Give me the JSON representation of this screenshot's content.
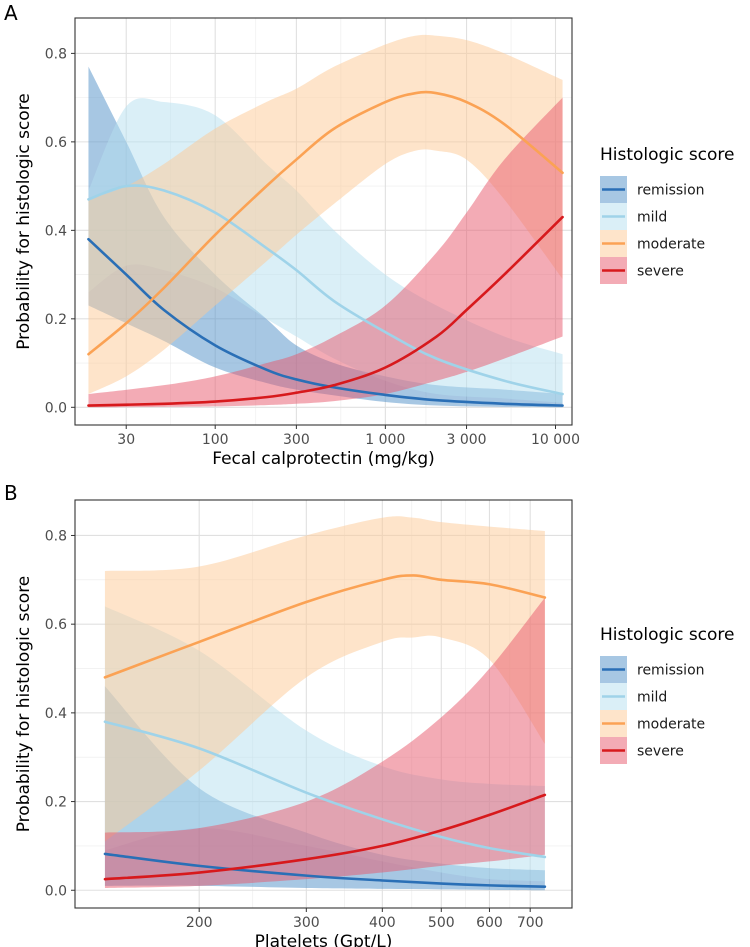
{
  "chart_data": [
    {
      "panel": "A",
      "type": "line",
      "xlabel": "Fecal calprotectin (mg/kg)",
      "ylabel": "Probability for histologic score",
      "xscale": "log10",
      "xlim": [
        15,
        12500
      ],
      "ylim": [
        -0.04,
        0.88
      ],
      "xticks": [
        30,
        100,
        300,
        1000,
        3000,
        10000
      ],
      "xtick_labels": [
        "30",
        "100",
        "300",
        "1 000",
        "3 000",
        "10 000"
      ],
      "yticks": [
        0,
        0.2,
        0.4,
        0.6,
        0.8
      ],
      "ytick_labels": [
        "0.0",
        "0.2",
        "0.4",
        "0.6",
        "0.8"
      ],
      "grid": true,
      "legend": {
        "title": "Histologic score",
        "position": "right"
      },
      "series": [
        {
          "name": "remission",
          "x": [
            18,
            30,
            50,
            100,
            200,
            300,
            500,
            1000,
            2000,
            5000,
            11000
          ],
          "y": [
            0.38,
            0.3,
            0.22,
            0.14,
            0.085,
            0.063,
            0.045,
            0.028,
            0.016,
            0.008,
            0.004
          ],
          "lower": [
            0.23,
            0.19,
            0.15,
            0.09,
            0.055,
            0.04,
            0.027,
            0.012,
            0.004,
            0.001,
            0.0
          ],
          "upper": [
            0.77,
            0.6,
            0.43,
            0.3,
            0.2,
            0.14,
            0.1,
            0.07,
            0.05,
            0.04,
            0.03
          ]
        },
        {
          "name": "mild",
          "x": [
            18,
            30,
            50,
            100,
            200,
            300,
            500,
            1000,
            2000,
            5000,
            11000
          ],
          "y": [
            0.47,
            0.5,
            0.49,
            0.44,
            0.36,
            0.31,
            0.24,
            0.17,
            0.11,
            0.06,
            0.03
          ],
          "lower": [
            0.26,
            0.32,
            0.31,
            0.27,
            0.2,
            0.16,
            0.11,
            0.06,
            0.03,
            0.02,
            0.01
          ],
          "upper": [
            0.49,
            0.68,
            0.69,
            0.66,
            0.55,
            0.49,
            0.4,
            0.3,
            0.23,
            0.16,
            0.12
          ]
        },
        {
          "name": "moderate",
          "x": [
            18,
            30,
            50,
            100,
            200,
            300,
            500,
            1000,
            1500,
            2000,
            3000,
            5000,
            11000
          ],
          "y": [
            0.12,
            0.19,
            0.27,
            0.39,
            0.5,
            0.56,
            0.63,
            0.69,
            0.71,
            0.71,
            0.69,
            0.64,
            0.53
          ],
          "lower": [
            0.03,
            0.07,
            0.13,
            0.23,
            0.33,
            0.39,
            0.46,
            0.55,
            0.58,
            0.58,
            0.56,
            0.47,
            0.29
          ],
          "upper": [
            0.47,
            0.5,
            0.55,
            0.63,
            0.69,
            0.72,
            0.77,
            0.82,
            0.84,
            0.84,
            0.83,
            0.8,
            0.74
          ]
        },
        {
          "name": "severe",
          "x": [
            18,
            50,
            100,
            200,
            300,
            500,
            1000,
            2000,
            3000,
            5000,
            11000
          ],
          "y": [
            0.004,
            0.008,
            0.013,
            0.023,
            0.033,
            0.05,
            0.09,
            0.16,
            0.22,
            0.3,
            0.43
          ],
          "lower": [
            0.0,
            0.001,
            0.002,
            0.005,
            0.008,
            0.014,
            0.03,
            0.06,
            0.08,
            0.11,
            0.16
          ],
          "upper": [
            0.03,
            0.05,
            0.07,
            0.1,
            0.12,
            0.16,
            0.23,
            0.35,
            0.44,
            0.56,
            0.7
          ]
        }
      ]
    },
    {
      "panel": "B",
      "type": "line",
      "xlabel": "Platelets (Gpt/L)",
      "ylabel": "Probability for histologic score",
      "xscale": "log10",
      "xlim": [
        125,
        820
      ],
      "ylim": [
        -0.04,
        0.88
      ],
      "xticks": [
        200,
        300,
        400,
        500,
        600,
        700
      ],
      "xtick_labels": [
        "200",
        "300",
        "400",
        "500",
        "600",
        "700"
      ],
      "yticks": [
        0,
        0.2,
        0.4,
        0.6,
        0.8
      ],
      "ytick_labels": [
        "0.0",
        "0.2",
        "0.4",
        "0.6",
        "0.8"
      ],
      "grid": true,
      "legend": {
        "title": "Histologic score",
        "position": "right"
      },
      "series": [
        {
          "name": "remission",
          "x": [
            140,
            200,
            300,
            400,
            500,
            600,
            740
          ],
          "y": [
            0.082,
            0.055,
            0.033,
            0.022,
            0.015,
            0.011,
            0.008
          ],
          "lower": [
            0.01,
            0.01,
            0.005,
            0.003,
            0.002,
            0.001,
            0.0
          ],
          "upper": [
            0.46,
            0.23,
            0.13,
            0.08,
            0.06,
            0.05,
            0.045
          ]
        },
        {
          "name": "mild",
          "x": [
            140,
            200,
            300,
            400,
            500,
            600,
            740
          ],
          "y": [
            0.38,
            0.32,
            0.22,
            0.16,
            0.12,
            0.095,
            0.075
          ],
          "lower": [
            0.09,
            0.14,
            0.1,
            0.065,
            0.04,
            0.025,
            0.02
          ],
          "upper": [
            0.64,
            0.54,
            0.36,
            0.28,
            0.25,
            0.24,
            0.235
          ]
        },
        {
          "name": "moderate",
          "x": [
            140,
            200,
            300,
            400,
            450,
            500,
            600,
            740
          ],
          "y": [
            0.48,
            0.56,
            0.65,
            0.7,
            0.71,
            0.7,
            0.69,
            0.66
          ],
          "lower": [
            0.11,
            0.27,
            0.48,
            0.56,
            0.57,
            0.57,
            0.52,
            0.33
          ],
          "upper": [
            0.72,
            0.73,
            0.8,
            0.84,
            0.84,
            0.83,
            0.82,
            0.81
          ]
        },
        {
          "name": "severe",
          "x": [
            140,
            200,
            300,
            400,
            500,
            600,
            740
          ],
          "y": [
            0.025,
            0.04,
            0.07,
            0.1,
            0.135,
            0.17,
            0.215
          ],
          "lower": [
            0.005,
            0.01,
            0.025,
            0.04,
            0.055,
            0.065,
            0.08
          ],
          "upper": [
            0.13,
            0.14,
            0.2,
            0.29,
            0.39,
            0.5,
            0.66
          ]
        }
      ]
    }
  ],
  "series_colors": {
    "remission": {
      "line": "#2a6fb6",
      "band": "#4f8fc8"
    },
    "mild": {
      "line": "#9fd3e9",
      "band": "#b5dff0"
    },
    "moderate": {
      "line": "#fba254",
      "band": "#fdc996"
    },
    "severe": {
      "line": "#d7191c",
      "band": "#e8576b"
    }
  }
}
